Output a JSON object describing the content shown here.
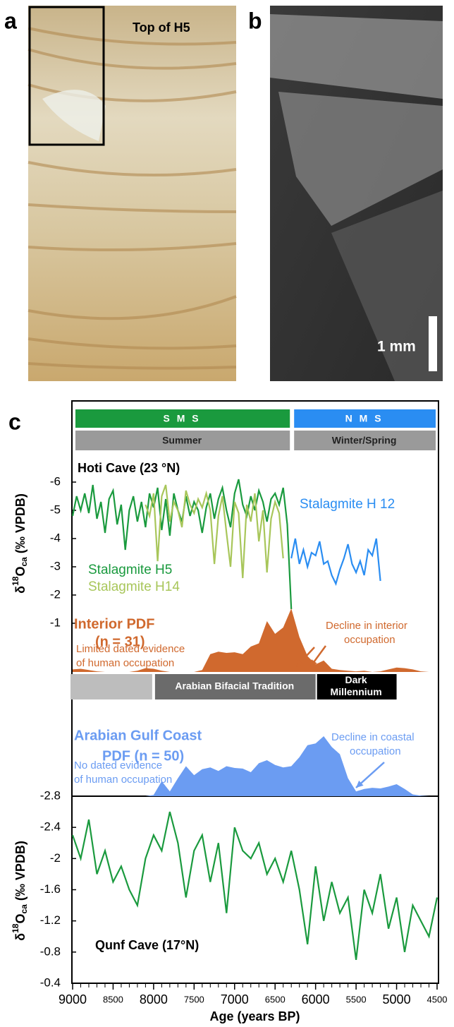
{
  "panel_labels": {
    "a": "a",
    "b": "b",
    "c": "c"
  },
  "panel_a": {
    "annotation": "Top of H5"
  },
  "panel_b": {
    "scale_bar": "1 mm"
  },
  "bands": {
    "monsoon": [
      {
        "label": "S M S",
        "start": 9000,
        "end": 6300,
        "color": "#1a9a3e"
      },
      {
        "label": "N M S",
        "start": 6300,
        "end": 4500,
        "color": "#2a8df2"
      }
    ],
    "season": [
      {
        "label": "Summer",
        "start": 9000,
        "end": 6300,
        "color": "#9a9a9a"
      },
      {
        "label": "Winter/Spring",
        "start": 6300,
        "end": 4500,
        "color": "#9a9a9a"
      }
    ]
  },
  "chart_data": [
    {
      "type": "line",
      "title": "Hoti Cave (23 °N)",
      "y_label": {
        "prefix": "δ",
        "sup": "18",
        "main": "O",
        "sub": "ca",
        "suffix": " (‰ VPDB)"
      },
      "xlim": [
        9000,
        4500
      ],
      "ylim": [
        -1,
        -6
      ],
      "yticks": [
        -6,
        -5,
        -4,
        -3,
        -2,
        -1
      ],
      "series": [
        {
          "name": "Stalagmite H5",
          "color": "#1a9a3e",
          "x": [
            9000,
            8950,
            8900,
            8850,
            8800,
            8750,
            8700,
            8650,
            8600,
            8550,
            8500,
            8450,
            8400,
            8350,
            8300,
            8250,
            8200,
            8150,
            8100,
            8050,
            8000,
            7950,
            7900,
            7850,
            7800,
            7750,
            7700,
            7650,
            7600,
            7550,
            7500,
            7450,
            7400,
            7350,
            7300,
            7250,
            7200,
            7150,
            7100,
            7050,
            7000,
            6950,
            6900,
            6850,
            6800,
            6750,
            6700,
            6650,
            6600,
            6550,
            6500,
            6450,
            6400,
            6350,
            6300
          ],
          "values": [
            -4.8,
            -5.5,
            -5.0,
            -5.6,
            -4.9,
            -5.9,
            -4.7,
            -5.3,
            -4.2,
            -5.4,
            -5.7,
            -4.5,
            -5.2,
            -3.6,
            -5.0,
            -5.5,
            -4.6,
            -5.3,
            -4.4,
            -5.6,
            -5.1,
            -5.8,
            -4.3,
            -5.4,
            -4.1,
            -5.6,
            -5.0,
            -4.6,
            -5.5,
            -4.8,
            -5.3,
            -5.0,
            -4.2,
            -5.1,
            -5.6,
            -4.7,
            -5.4,
            -5.8,
            -5.0,
            -4.4,
            -5.6,
            -6.1,
            -5.2,
            -4.8,
            -5.5,
            -5.0,
            -5.7,
            -5.3,
            -4.6,
            -5.4,
            -5.6,
            -5.2,
            -5.8,
            -4.5,
            -1.5
          ]
        },
        {
          "name": "Stalagmite H14",
          "color": "#a8c65a",
          "x": [
            8100,
            8050,
            8000,
            7950,
            7900,
            7850,
            7800,
            7750,
            7700,
            7650,
            7600,
            7550,
            7500,
            7450,
            7400,
            7350,
            7300,
            7250,
            7200,
            7150,
            7100,
            7050,
            7000,
            6950,
            6900,
            6850,
            6800,
            6750,
            6700,
            6650,
            6600,
            6550,
            6500,
            6450,
            6400
          ],
          "values": [
            -5.2,
            -4.8,
            -5.6,
            -3.2,
            -5.5,
            -5.9,
            -4.6,
            -5.3,
            -5.0,
            -4.4,
            -5.7,
            -5.2,
            -4.9,
            -5.4,
            -5.1,
            -5.6,
            -5.0,
            -3.1,
            -4.8,
            -5.5,
            -4.2,
            -3.0,
            -5.3,
            -4.9,
            -2.6,
            -5.2,
            -4.6,
            -5.6,
            -3.9,
            -5.0,
            -2.8,
            -4.7,
            -5.3,
            -4.9,
            -3.3
          ]
        },
        {
          "name": "Stalagmite H 12",
          "color": "#2a8df2",
          "x": [
            6300,
            6250,
            6200,
            6150,
            6100,
            6050,
            6000,
            5950,
            5900,
            5850,
            5800,
            5750,
            5700,
            5650,
            5600,
            5550,
            5500,
            5450,
            5400,
            5350,
            5300,
            5250,
            5200
          ],
          "values": [
            -3.3,
            -4.0,
            -3.1,
            -3.6,
            -3.0,
            -3.5,
            -3.4,
            -3.9,
            -3.1,
            -3.2,
            -2.7,
            -2.4,
            -2.9,
            -3.3,
            -3.8,
            -3.1,
            -2.8,
            -3.2,
            -2.7,
            -3.6,
            -3.4,
            -4.0,
            -2.5
          ]
        }
      ]
    },
    {
      "type": "area",
      "title": "Interior PDF",
      "subtitle": "(n = 31)",
      "color": "#d0692e",
      "xlim": [
        9000,
        4500
      ],
      "x": [
        9000,
        8900,
        8800,
        8700,
        8600,
        8500,
        8400,
        8300,
        8200,
        8100,
        8000,
        7900,
        7800,
        7700,
        7600,
        7500,
        7400,
        7300,
        7200,
        7100,
        7000,
        6900,
        6800,
        6700,
        6600,
        6500,
        6400,
        6300,
        6200,
        6100,
        6000,
        5900,
        5800,
        5700,
        5600,
        5500,
        5400,
        5300,
        5200,
        5100,
        5000,
        4900,
        4800,
        4700,
        4600
      ],
      "values": [
        4,
        5,
        3,
        1,
        0,
        0,
        0,
        0,
        2,
        6,
        5,
        2,
        0,
        0,
        0,
        0,
        3,
        28,
        32,
        30,
        31,
        28,
        40,
        45,
        80,
        60,
        70,
        100,
        55,
        25,
        12,
        18,
        5,
        3,
        2,
        1,
        2,
        0,
        1,
        4,
        7,
        6,
        4,
        1,
        0
      ],
      "annotations": [
        {
          "lines": [
            "Limited dated evidence",
            "of human occupation"
          ]
        },
        {
          "lines": [
            "Decline in interior",
            "occupation"
          ]
        }
      ]
    },
    {
      "type": "timeline",
      "xlim": [
        9000,
        4500
      ],
      "periods": [
        {
          "start": 9000,
          "end": 8000,
          "color": "#bdbdbd"
        },
        {
          "label_lines": [
            "Arabian Bifacial Tradition"
          ],
          "start": 8000,
          "end": 6000,
          "color": "#6b6b6b"
        },
        {
          "label_lines": [
            "Dark",
            "Millennium"
          ],
          "start": 6000,
          "end": 5000,
          "color": "#000000"
        }
      ]
    },
    {
      "type": "area",
      "title": "Arabian Gulf Coast",
      "subtitle": "PDF (n = 50)",
      "color": "#6b9cf2",
      "xlim": [
        9000,
        4500
      ],
      "x": [
        9000,
        8900,
        8800,
        8700,
        8600,
        8500,
        8400,
        8300,
        8200,
        8100,
        8000,
        7900,
        7800,
        7700,
        7600,
        7500,
        7400,
        7300,
        7200,
        7100,
        7000,
        6900,
        6800,
        6700,
        6600,
        6500,
        6400,
        6300,
        6200,
        6100,
        6000,
        5900,
        5800,
        5700,
        5600,
        5500,
        5400,
        5300,
        5200,
        5100,
        5000,
        4900,
        4800,
        4700,
        4600
      ],
      "values": [
        0,
        0,
        0,
        0,
        0,
        0,
        0,
        0,
        0,
        0,
        2,
        25,
        8,
        30,
        50,
        35,
        45,
        48,
        42,
        50,
        47,
        46,
        40,
        55,
        60,
        52,
        48,
        50,
        65,
        85,
        88,
        100,
        82,
        70,
        30,
        8,
        12,
        14,
        13,
        16,
        20,
        12,
        3,
        1,
        0
      ],
      "annotations": [
        {
          "lines": [
            "No dated evidence",
            "of human occupation"
          ]
        },
        {
          "lines": [
            "Decline in coastal",
            "occupation"
          ]
        }
      ]
    },
    {
      "type": "line",
      "title": "Qunf Cave  (17°N)",
      "x_label": "Age (years BP)",
      "y_label": {
        "prefix": "δ",
        "sup": "18",
        "main": "O",
        "sub": "ca",
        "suffix": " (‰ VPDB)"
      },
      "xlim": [
        9000,
        4500
      ],
      "ylim": [
        -0.4,
        -2.8
      ],
      "yticks": [
        -2.8,
        -2.4,
        -2,
        -1.6,
        -1.2,
        -0.8,
        -0.4
      ],
      "xticks": [
        9000,
        8500,
        8000,
        7500,
        7000,
        6500,
        6000,
        5500,
        5000,
        4500
      ],
      "xminorticks": [
        8900,
        8800,
        8700,
        8600,
        8400,
        8300,
        8200,
        8100,
        7900,
        7800,
        7700,
        7600,
        7400,
        7300,
        7200,
        7100,
        6900,
        6800,
        6700,
        6600,
        6400,
        6300,
        6200,
        6100,
        5900,
        5800,
        5700,
        5600,
        5400,
        5300,
        5200,
        5100,
        4900,
        4800,
        4700,
        4600
      ],
      "series": [
        {
          "color": "#1a9a3e",
          "x": [
            9000,
            8900,
            8800,
            8700,
            8600,
            8500,
            8400,
            8300,
            8200,
            8100,
            8000,
            7900,
            7800,
            7700,
            7600,
            7500,
            7400,
            7300,
            7200,
            7100,
            7000,
            6900,
            6800,
            6700,
            6600,
            6500,
            6400,
            6300,
            6200,
            6100,
            6000,
            5900,
            5800,
            5700,
            5600,
            5500,
            5400,
            5300,
            5200,
            5100,
            5000,
            4900,
            4800,
            4700,
            4600,
            4500
          ],
          "values": [
            -2.3,
            -2.0,
            -2.5,
            -1.8,
            -2.1,
            -1.7,
            -1.9,
            -1.6,
            -1.4,
            -2.0,
            -2.3,
            -2.1,
            -2.6,
            -2.2,
            -1.5,
            -2.1,
            -2.3,
            -1.7,
            -2.2,
            -1.3,
            -2.4,
            -2.1,
            -2.0,
            -2.2,
            -1.8,
            -2.0,
            -1.7,
            -2.1,
            -1.6,
            -0.9,
            -1.9,
            -1.2,
            -1.7,
            -1.3,
            -1.5,
            -0.7,
            -1.6,
            -1.3,
            -1.8,
            -1.1,
            -1.5,
            -0.8,
            -1.4,
            -1.2,
            -1.0,
            -1.5
          ]
        }
      ]
    }
  ]
}
